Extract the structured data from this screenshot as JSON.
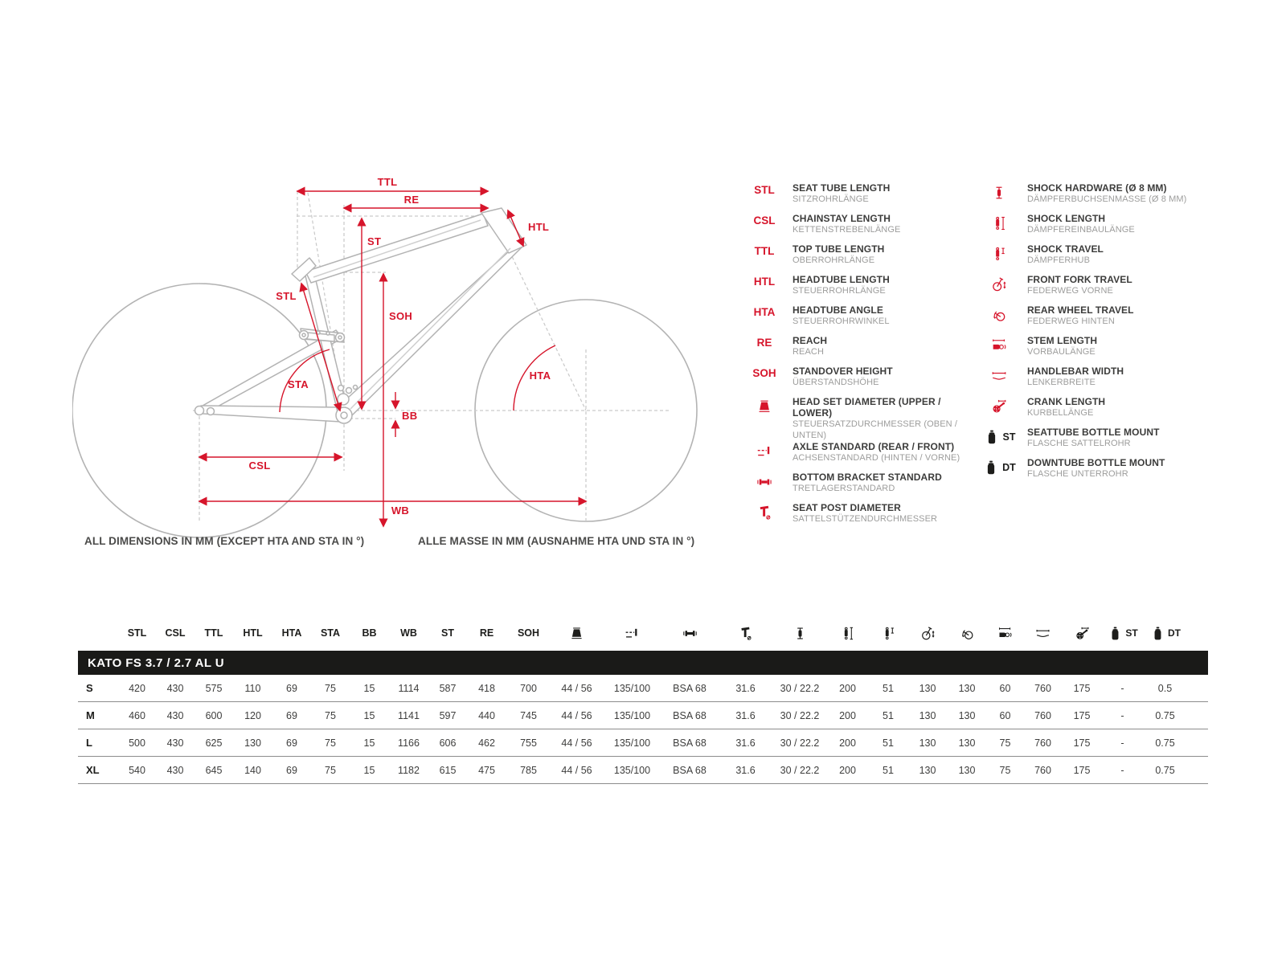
{
  "colors": {
    "red": "#d6152b",
    "dark": "#1d1d1b",
    "text": "#3c3c3b",
    "subtext": "#9d9d9c",
    "frame_gray": "#b3b3b3",
    "table_band": "#1a1a18"
  },
  "diagram": {
    "dim_labels": {
      "ttl": "TTL",
      "re": "RE",
      "htl": "HTL",
      "st": "ST",
      "stl": "STL",
      "soh": "SOH",
      "sta": "STA",
      "hta": "HTA",
      "bb": "BB",
      "csl": "CSL",
      "wb": "WB"
    },
    "caption_en": "ALL DIMENSIONS IN MM (EXCEPT HTA AND STA IN °)",
    "caption_de": "ALLE MASSE IN MM (AUSNAHME HTA UND STA IN °)"
  },
  "legend": {
    "left": [
      {
        "key": "STL",
        "en": "SEAT TUBE LENGTH",
        "de": "SITZROHRLÄNGE"
      },
      {
        "key": "CSL",
        "en": "CHAINSTAY LENGTH",
        "de": "KETTENSTREBENLÄNGE"
      },
      {
        "key": "TTL",
        "en": "TOP TUBE LENGTH",
        "de": "OBERROHRLÄNGE"
      },
      {
        "key": "HTL",
        "en": "HEADTUBE LENGTH",
        "de": "STEUERROHRLÄNGE"
      },
      {
        "key": "HTA",
        "en": "HEADTUBE ANGLE",
        "de": "STEUERROHRWINKEL"
      },
      {
        "key": "RE",
        "en": "REACH",
        "de": "REACH"
      },
      {
        "key": "SOH",
        "en": "STANDOVER HEIGHT",
        "de": "ÜBERSTANDSHÖHE"
      },
      {
        "icon": "headset-icon",
        "color": "red",
        "en": "HEAD SET DIAMETER (UPPER / LOWER)",
        "de": "STEUERSATZDURCHMESSER (OBEN / UNTEN)"
      },
      {
        "icon": "axle-icon",
        "color": "red",
        "en": "AXLE STANDARD (REAR / FRONT)",
        "de": "ACHSENSTANDARD (HINTEN / VORNE)"
      },
      {
        "icon": "bottom-bracket-icon",
        "color": "red",
        "en": "BOTTOM BRACKET STANDARD",
        "de": "TRETLAGERSTANDARD"
      },
      {
        "icon": "seatpost-icon",
        "color": "red",
        "en": "SEAT POST DIAMETER",
        "de": "SATTELSTÜTZENDURCHMESSER"
      }
    ],
    "right": [
      {
        "icon": "shock-hardware-icon",
        "color": "red",
        "en": "SHOCK HARDWARE (Ø 8 MM)",
        "de": "DÄMPFERBUCHSENMASSE (Ø 8 MM)"
      },
      {
        "icon": "shock-length-icon",
        "color": "red",
        "en": "SHOCK LENGTH",
        "de": "DÄMPFEREINBAULÄNGE"
      },
      {
        "icon": "shock-travel-icon",
        "color": "red",
        "en": "SHOCK TRAVEL",
        "de": "DÄMPFERHUB"
      },
      {
        "icon": "front-fork-travel-icon",
        "color": "red",
        "en": "FRONT FORK TRAVEL",
        "de": "FEDERWEG VORNE"
      },
      {
        "icon": "rear-wheel-travel-icon",
        "color": "red",
        "en": "REAR WHEEL TRAVEL",
        "de": "FEDERWEG HINTEN"
      },
      {
        "icon": "stem-length-icon",
        "color": "red",
        "en": "STEM LENGTH",
        "de": "VORBAULÄNGE"
      },
      {
        "icon": "handlebar-width-icon",
        "color": "red",
        "en": "HANDLEBAR WIDTH",
        "de": "LENKERBREITE"
      },
      {
        "icon": "crank-length-icon",
        "color": "red",
        "en": "CRANK LENGTH",
        "de": "KURBELLÄNGE"
      },
      {
        "icon": "bottle-icon",
        "color": "black",
        "tag": "ST",
        "en": "SEATTUBE BOTTLE MOUNT",
        "de": "FLASCHE SATTELROHR"
      },
      {
        "icon": "bottle-icon",
        "color": "black",
        "tag": "DT",
        "en": "DOWNTUBE BOTTLE MOUNT",
        "de": "FLASCHE UNTERROHR"
      }
    ]
  },
  "table": {
    "title": "KATO FS 3.7 / 2.7 AL U",
    "text_headers": [
      "STL",
      "CSL",
      "TTL",
      "HTL",
      "HTA",
      "STA",
      "BB",
      "WB",
      "ST",
      "RE",
      "SOH"
    ],
    "icon_headers": [
      {
        "icon": "headset-icon"
      },
      {
        "icon": "axle-icon"
      },
      {
        "icon": "bottom-bracket-icon"
      },
      {
        "icon": "seatpost-icon"
      },
      {
        "icon": "shock-hardware-icon"
      },
      {
        "icon": "shock-length-icon"
      },
      {
        "icon": "shock-travel-icon"
      },
      {
        "icon": "front-fork-travel-icon"
      },
      {
        "icon": "rear-wheel-travel-icon"
      },
      {
        "icon": "stem-length-icon"
      },
      {
        "icon": "handlebar-width-icon"
      },
      {
        "icon": "crank-length-icon"
      },
      {
        "icon": "bottle-icon",
        "tag": "ST"
      },
      {
        "icon": "bottle-icon",
        "tag": "DT"
      }
    ],
    "rows": [
      {
        "size": "S",
        "values": [
          "420",
          "430",
          "575",
          "110",
          "69",
          "75",
          "15",
          "1114",
          "587",
          "418",
          "700",
          "44 / 56",
          "135/100",
          "BSA 68",
          "31.6",
          "30 / 22.2",
          "200",
          "51",
          "130",
          "130",
          "60",
          "760",
          "175",
          "-",
          "0.5"
        ]
      },
      {
        "size": "M",
        "values": [
          "460",
          "430",
          "600",
          "120",
          "69",
          "75",
          "15",
          "1141",
          "597",
          "440",
          "745",
          "44 / 56",
          "135/100",
          "BSA 68",
          "31.6",
          "30 / 22.2",
          "200",
          "51",
          "130",
          "130",
          "60",
          "760",
          "175",
          "-",
          "0.75"
        ]
      },
      {
        "size": "L",
        "values": [
          "500",
          "430",
          "625",
          "130",
          "69",
          "75",
          "15",
          "1166",
          "606",
          "462",
          "755",
          "44 / 56",
          "135/100",
          "BSA 68",
          "31.6",
          "30 / 22.2",
          "200",
          "51",
          "130",
          "130",
          "75",
          "760",
          "175",
          "-",
          "0.75"
        ]
      },
      {
        "size": "XL",
        "values": [
          "540",
          "430",
          "645",
          "140",
          "69",
          "75",
          "15",
          "1182",
          "615",
          "475",
          "785",
          "44 / 56",
          "135/100",
          "BSA 68",
          "31.6",
          "30 / 22.2",
          "200",
          "51",
          "130",
          "130",
          "75",
          "760",
          "175",
          "-",
          "0.75"
        ]
      }
    ]
  }
}
